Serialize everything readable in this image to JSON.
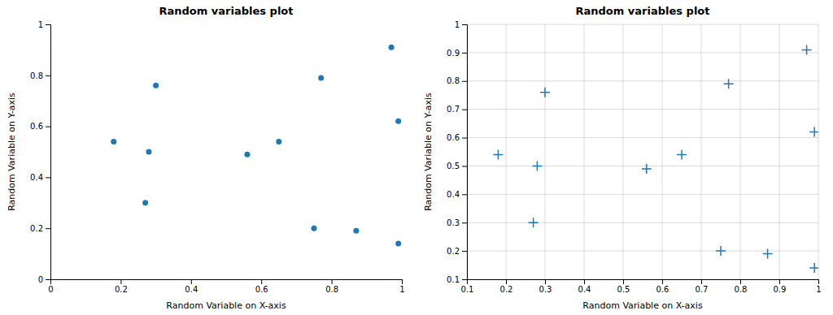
{
  "chart_data": [
    {
      "type": "scatter",
      "title": "Random variables plot",
      "x_label": "Random Variable on X-axis",
      "y_label": "Random Variable on Y-axis",
      "x": [
        0.18,
        0.27,
        0.28,
        0.3,
        0.56,
        0.65,
        0.75,
        0.77,
        0.87,
        0.97,
        0.99,
        0.99
      ],
      "values": [
        0.54,
        0.3,
        0.5,
        0.76,
        0.49,
        0.54,
        0.2,
        0.79,
        0.19,
        0.91,
        0.62,
        0.14
      ],
      "color": "#1f77b4",
      "marker": "circle",
      "xlim": [
        0,
        1
      ],
      "ylim": [
        0,
        1
      ],
      "xticks": [
        0,
        0.2,
        0.4,
        0.6,
        0.8,
        1
      ],
      "yticks": [
        0,
        0.2,
        0.4,
        0.6,
        0.8,
        1
      ],
      "grid": false
    },
    {
      "type": "scatter",
      "title": "Random variables plot",
      "x_label": "Random Variable on X-axis",
      "y_label": "Random Variable on Y-axis",
      "x": [
        0.18,
        0.27,
        0.28,
        0.3,
        0.56,
        0.65,
        0.75,
        0.77,
        0.87,
        0.97,
        0.99,
        0.99
      ],
      "values": [
        0.54,
        0.3,
        0.5,
        0.76,
        0.49,
        0.54,
        0.2,
        0.79,
        0.19,
        0.91,
        0.62,
        0.14
      ],
      "color": "#1f77b4",
      "marker": "plus",
      "xlim": [
        0.1,
        1.0
      ],
      "ylim": [
        0.1,
        1.0
      ],
      "xticks": [
        0.1,
        0.2,
        0.3,
        0.4,
        0.5,
        0.6,
        0.7,
        0.8,
        0.9,
        1.0
      ],
      "yticks": [
        0.1,
        0.2,
        0.3,
        0.4,
        0.5,
        0.6,
        0.7,
        0.8,
        0.9,
        1.0
      ],
      "grid": true
    }
  ]
}
